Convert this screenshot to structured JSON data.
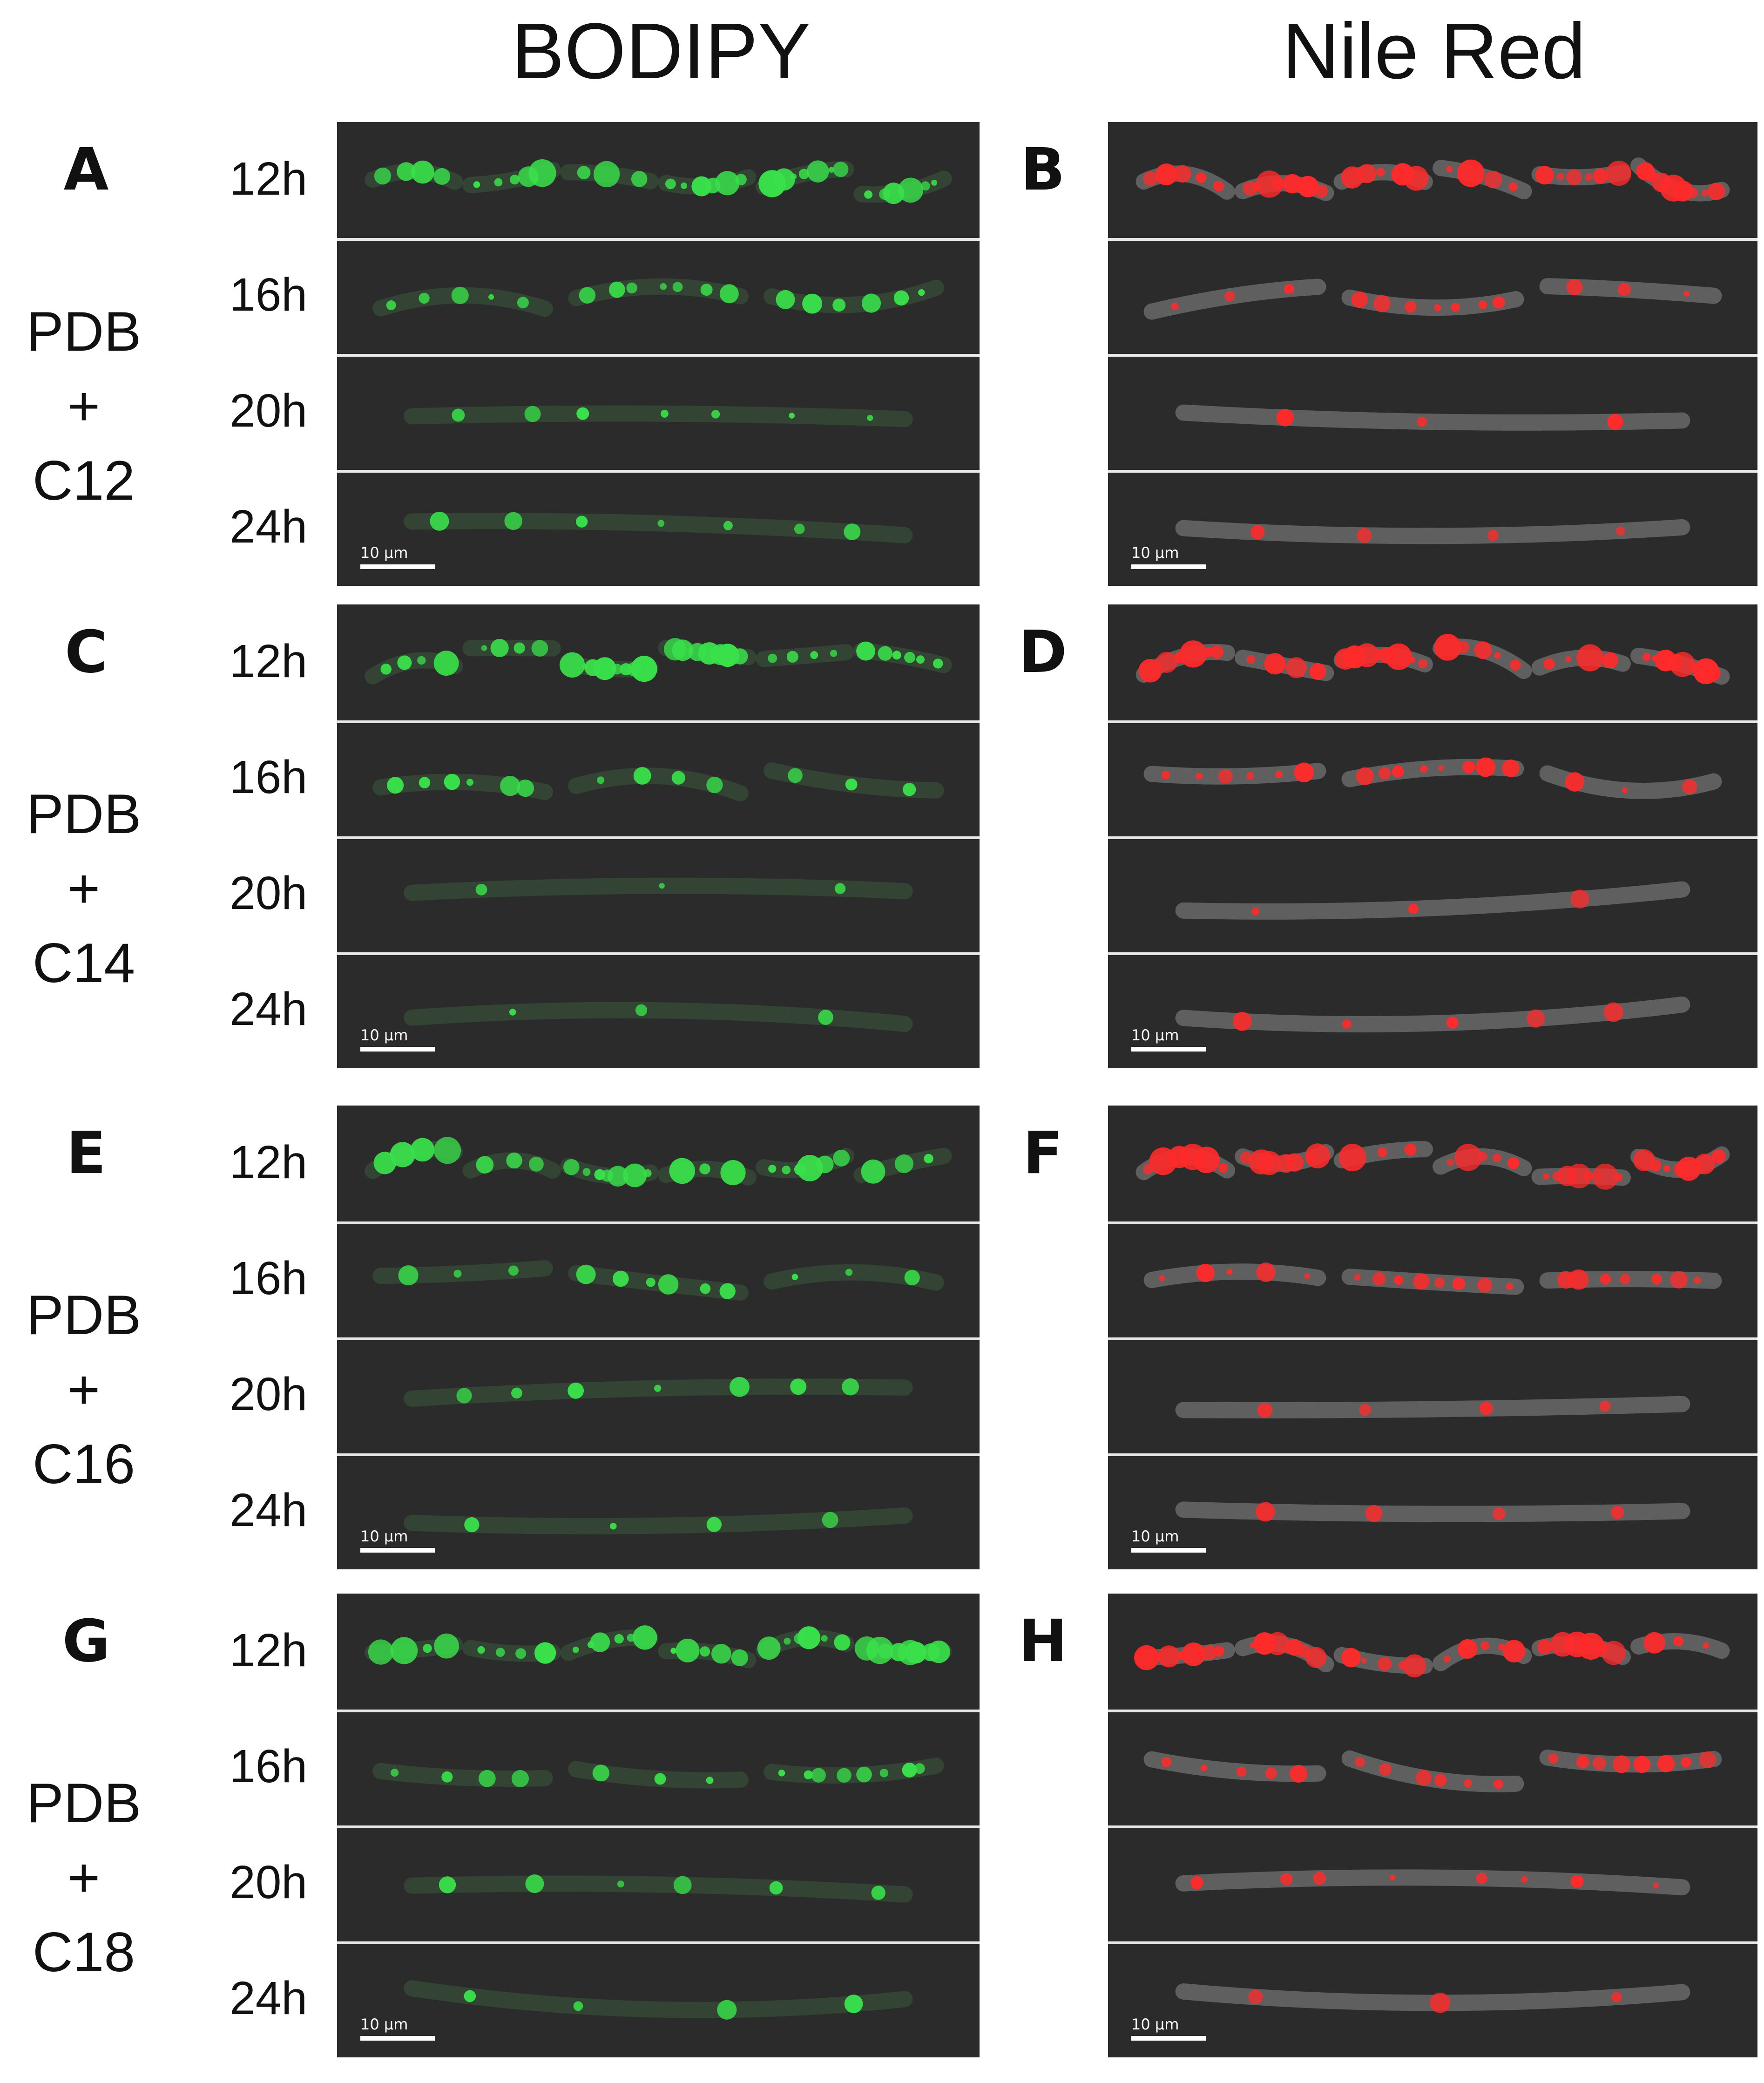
{
  "titles": {
    "left": "BODIPY",
    "right": "Nile Red"
  },
  "groups": [
    {
      "left_letter": "A",
      "right_letter": "B",
      "treatment": [
        "PDB",
        "+",
        "C12"
      ],
      "times": [
        "12h",
        "16h",
        "20h",
        "24h"
      ],
      "scale_bar": "10 µm"
    },
    {
      "left_letter": "C",
      "right_letter": "D",
      "treatment": [
        "PDB",
        "+",
        "C14"
      ],
      "times": [
        "12h",
        "16h",
        "20h",
        "24h"
      ],
      "scale_bar": "10 µm"
    },
    {
      "left_letter": "E",
      "right_letter": "F",
      "treatment": [
        "PDB",
        "+",
        "C16"
      ],
      "times": [
        "12h",
        "16h",
        "20h",
        "24h"
      ],
      "scale_bar": "10 µm"
    },
    {
      "left_letter": "G",
      "right_letter": "H",
      "treatment": [
        "PDB",
        "+",
        "C18"
      ],
      "times": [
        "12h",
        "16h",
        "20h",
        "24h"
      ],
      "scale_bar": "10 µm"
    }
  ],
  "colors": {
    "bodipy": "#39e04a",
    "nile_red": "#ff2a2a",
    "background": "#2b2b2b",
    "hypha_outline": "#8a8a8a"
  }
}
